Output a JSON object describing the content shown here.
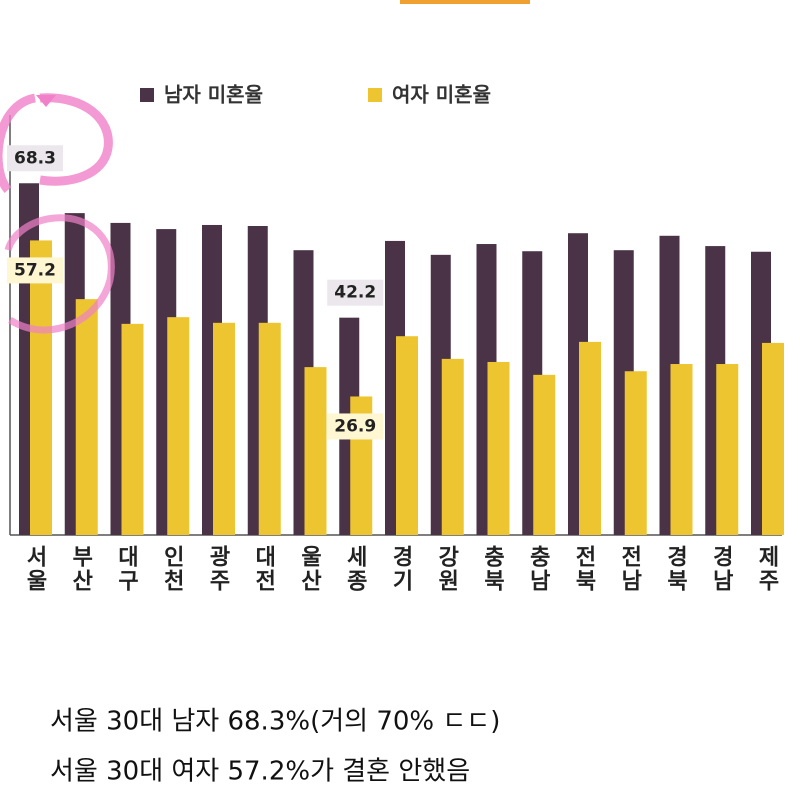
{
  "chart_data": {
    "type": "bar",
    "categories": [
      "서울",
      "부산",
      "대구",
      "인천",
      "광주",
      "대전",
      "울산",
      "세종",
      "경기",
      "강원",
      "충북",
      "충남",
      "전북",
      "전남",
      "경북",
      "경남",
      "제주"
    ],
    "series": [
      {
        "name": "남자 미혼율",
        "color": "#4a3346",
        "values": [
          68.3,
          62.5,
          60.6,
          59.4,
          60.2,
          60.0,
          55.3,
          42.2,
          57.1,
          54.4,
          56.5,
          55.1,
          58.6,
          55.3,
          58.1,
          56.1,
          55.0
        ],
        "value_labels": [
          "68.3",
          null,
          null,
          null,
          null,
          null,
          null,
          "42.2",
          null,
          null,
          null,
          null,
          null,
          null,
          null,
          null,
          null
        ]
      },
      {
        "name": "여자 미혼율",
        "color": "#ecc531",
        "values": [
          57.2,
          45.8,
          41.0,
          42.3,
          41.2,
          41.2,
          32.6,
          26.9,
          38.6,
          34.2,
          33.6,
          31.1,
          37.5,
          31.8,
          33.2,
          33.2,
          37.3
        ],
        "value_labels": [
          "57.2",
          null,
          null,
          null,
          null,
          null,
          null,
          "26.9",
          null,
          null,
          null,
          null,
          null,
          null,
          null,
          null,
          null
        ]
      }
    ],
    "ylim": [
      0,
      80
    ]
  },
  "caption_lines": [
    "서울 30대 남자 68.3%(거의 70% ㄷㄷ)",
    "서울 30대 여자 57.2%가 결혼 안했음"
  ]
}
